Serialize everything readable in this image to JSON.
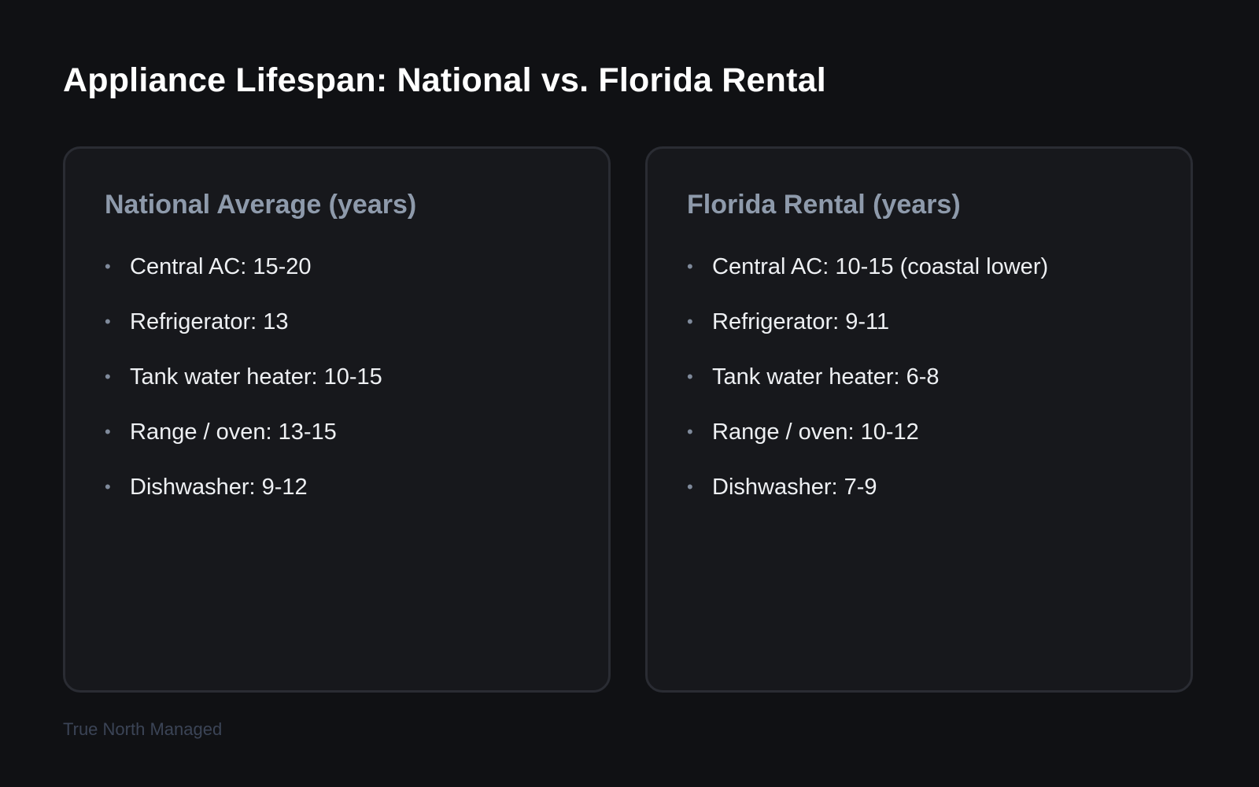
{
  "title": "Appliance Lifespan: National vs. Florida Rental",
  "cards": [
    {
      "heading": "National Average (years)",
      "items": [
        "Central AC: 15-20",
        "Refrigerator: 13",
        "Tank water heater: 10-15",
        "Range / oven: 13-15",
        "Dishwasher: 9-12"
      ]
    },
    {
      "heading": "Florida Rental (years)",
      "items": [
        "Central AC: 10-15 (coastal lower)",
        "Refrigerator: 9-11",
        "Tank water heater: 6-8",
        "Range / oven: 10-12",
        "Dishwasher: 7-9"
      ]
    }
  ],
  "footer": "True North Managed",
  "colors": {
    "background": "#101114",
    "card": "#17181c",
    "border": "#2a2c33",
    "heading": "#8e9aab",
    "footer": "#3b4456"
  },
  "icons": {
    "bullet": "bullet-dot-icon"
  }
}
